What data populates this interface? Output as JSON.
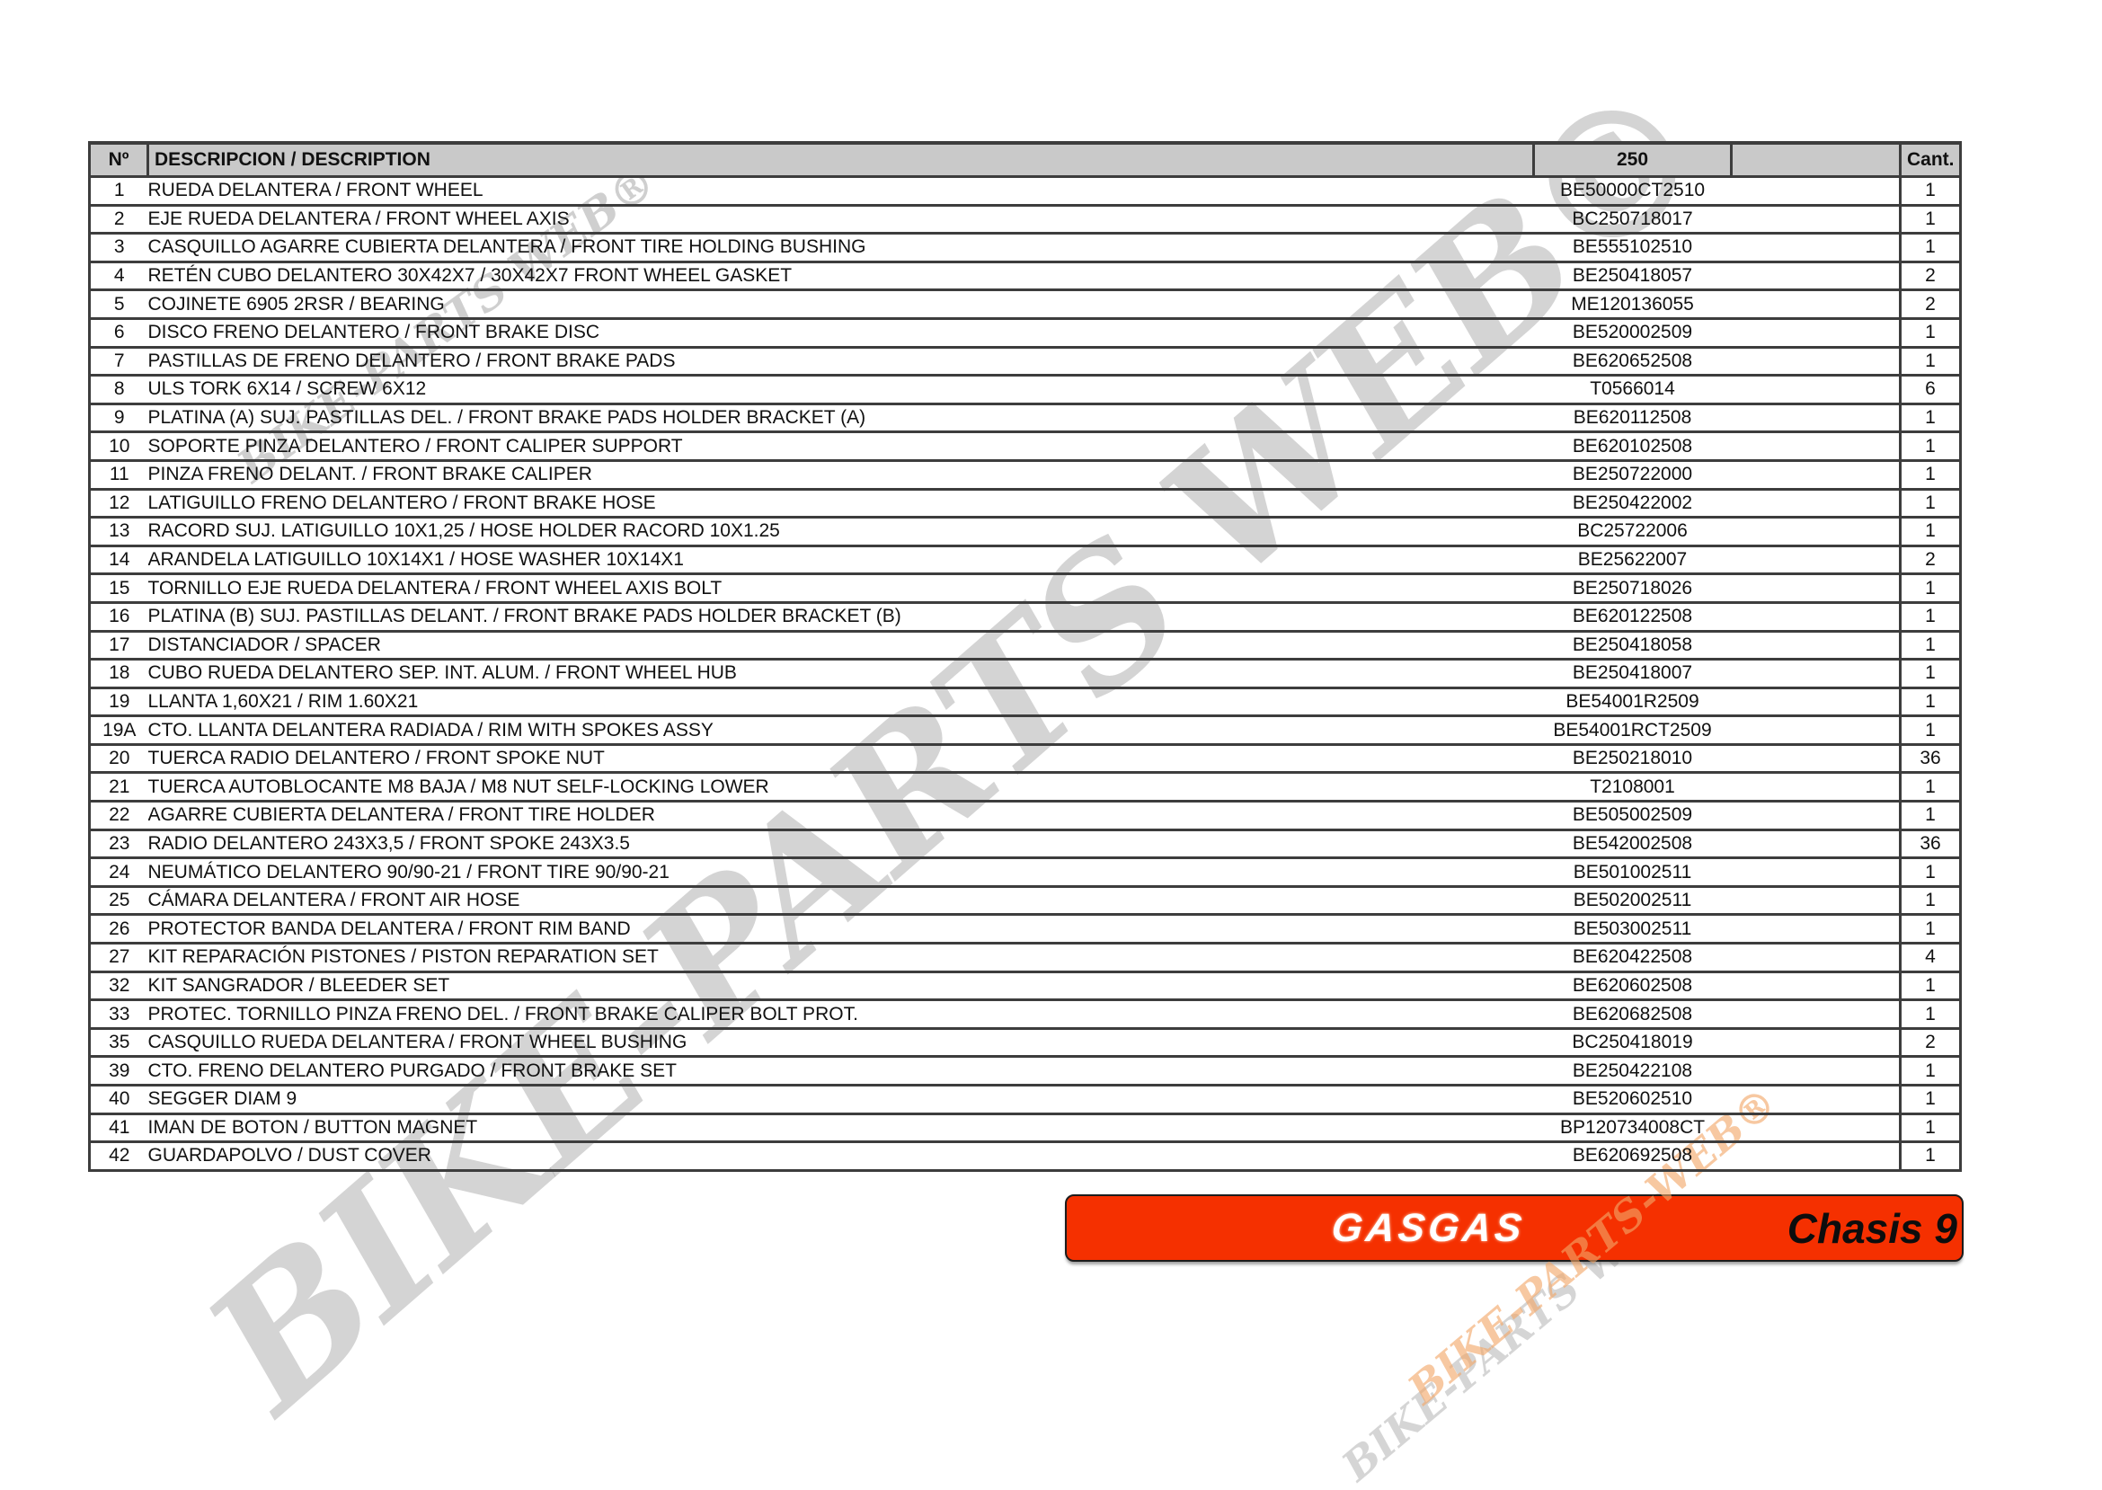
{
  "page": {
    "background": "#ffffff"
  },
  "table": {
    "headers": {
      "num": "Nº",
      "description": "DESCRIPCION / DESCRIPTION",
      "model": "250",
      "spare": "",
      "qty": "Cant."
    },
    "style": {
      "header_bg": "#c9c9c9",
      "line_color": "#3d3d3d"
    },
    "rows": [
      {
        "num": "1",
        "description": "RUEDA DELANTERA / FRONT WHEEL",
        "part": "BE50000CT2510",
        "qty": "1"
      },
      {
        "num": "2",
        "description": "EJE RUEDA DELANTERA / FRONT WHEEL AXIS",
        "part": "BC250718017",
        "qty": "1"
      },
      {
        "num": "3",
        "description": "CASQUILLO AGARRE CUBIERTA DELANTERA / FRONT TIRE HOLDING BUSHING",
        "part": "BE555102510",
        "qty": "1"
      },
      {
        "num": "4",
        "description": "RETÉN CUBO DELANTERO 30X42X7 / 30X42X7 FRONT WHEEL GASKET",
        "part": "BE250418057",
        "qty": "2"
      },
      {
        "num": "5",
        "description": "COJINETE 6905 2RSR / BEARING",
        "part": "ME120136055",
        "qty": "2"
      },
      {
        "num": "6",
        "description": "DISCO FRENO DELANTERO / FRONT BRAKE DISC",
        "part": "BE520002509",
        "qty": "1"
      },
      {
        "num": "7",
        "description": "PASTILLAS DE FRENO DELANTERO / FRONT BRAKE PADS",
        "part": "BE620652508",
        "qty": "1"
      },
      {
        "num": "8",
        "description": "ULS TORK 6X14 / SCREW 6X12",
        "part": "T0566014",
        "qty": "6"
      },
      {
        "num": "9",
        "description": "PLATINA (A) SUJ. PASTILLAS DEL. / FRONT BRAKE PADS HOLDER BRACKET (A)",
        "part": "BE620112508",
        "qty": "1"
      },
      {
        "num": "10",
        "description": "SOPORTE PINZA DELANTERO / FRONT CALIPER SUPPORT",
        "part": "BE620102508",
        "qty": "1"
      },
      {
        "num": "11",
        "description": "PINZA FRENO DELANT. / FRONT BRAKE CALIPER",
        "part": "BE250722000",
        "qty": "1"
      },
      {
        "num": "12",
        "description": "LATIGUILLO FRENO DELANTERO / FRONT BRAKE HOSE",
        "part": "BE250422002",
        "qty": "1"
      },
      {
        "num": "13",
        "description": "RACORD SUJ. LATIGUILLO 10X1,25 / HOSE HOLDER RACORD 10X1.25",
        "part": "BC25722006",
        "qty": "1"
      },
      {
        "num": "14",
        "description": "ARANDELA LATIGUILLO 10X14X1 / HOSE WASHER 10X14X1",
        "part": "BE25622007",
        "qty": "2"
      },
      {
        "num": "15",
        "description": "TORNILLO EJE RUEDA DELANTERA / FRONT WHEEL AXIS BOLT",
        "part": "BE250718026",
        "qty": "1"
      },
      {
        "num": "16",
        "description": "PLATINA (B) SUJ. PASTILLAS DELANT. / FRONT BRAKE PADS HOLDER BRACKET (B)",
        "part": "BE620122508",
        "qty": "1"
      },
      {
        "num": "17",
        "description": "DISTANCIADOR / SPACER",
        "part": "BE250418058",
        "qty": "1"
      },
      {
        "num": "18",
        "description": "CUBO RUEDA DELANTERO SEP. INT. ALUM. / FRONT WHEEL HUB",
        "part": "BE250418007",
        "qty": "1"
      },
      {
        "num": "19",
        "description": "LLANTA 1,60X21 / RIM 1.60X21",
        "part": "BE54001R2509",
        "qty": "1"
      },
      {
        "num": "19A",
        "description": "CTO. LLANTA DELANTERA RADIADA / RIM WITH SPOKES ASSY",
        "part": "BE54001RCT2509",
        "qty": "1"
      },
      {
        "num": "20",
        "description": "TUERCA RADIO DELANTERO / FRONT SPOKE NUT",
        "part": "BE250218010",
        "qty": "36"
      },
      {
        "num": "21",
        "description": "TUERCA AUTOBLOCANTE M8 BAJA / M8 NUT SELF-LOCKING LOWER",
        "part": "T2108001",
        "qty": "1"
      },
      {
        "num": "22",
        "description": "AGARRE CUBIERTA DELANTERA / FRONT TIRE HOLDER",
        "part": "BE505002509",
        "qty": "1"
      },
      {
        "num": "23",
        "description": "RADIO DELANTERO 243X3,5 / FRONT SPOKE 243X3.5",
        "part": "BE542002508",
        "qty": "36"
      },
      {
        "num": "24",
        "description": "NEUMÁTICO DELANTERO 90/90-21 / FRONT TIRE 90/90-21",
        "part": "BE501002511",
        "qty": "1"
      },
      {
        "num": "25",
        "description": "CÁMARA DELANTERA / FRONT AIR HOSE",
        "part": "BE502002511",
        "qty": "1"
      },
      {
        "num": "26",
        "description": "PROTECTOR BANDA DELANTERA / FRONT RIM BAND",
        "part": "BE503002511",
        "qty": "1"
      },
      {
        "num": "27",
        "description": "KIT REPARACIÓN PISTONES / PISTON REPARATION SET",
        "part": "BE620422508",
        "qty": "4"
      },
      {
        "num": "32",
        "description": "KIT SANGRADOR / BLEEDER SET",
        "part": "BE620602508",
        "qty": "1"
      },
      {
        "num": "33",
        "description": "PROTEC. TORNILLO PINZA FRENO DEL. / FRONT BRAKE CALIPER BOLT PROT.",
        "part": "BE620682508",
        "qty": "1"
      },
      {
        "num": "35",
        "description": "CASQUILLO RUEDA DELANTERA / FRONT WHEEL BUSHING",
        "part": "BC250418019",
        "qty": "2"
      },
      {
        "num": "39",
        "description": "CTO. FRENO DELANTERO PURGADO / FRONT BRAKE SET",
        "part": "BE250422108",
        "qty": "1"
      },
      {
        "num": "40",
        "description": "SEGGER DIAM 9",
        "part": "BE520602510",
        "qty": "1"
      },
      {
        "num": "41",
        "description": "IMAN DE BOTON / BUTTON MAGNET",
        "part": "BP120734008CT",
        "qty": "1"
      },
      {
        "num": "42",
        "description": "GUARDAPOLVO / DUST COVER",
        "part": "BE620692508",
        "qty": "1"
      }
    ]
  },
  "banner": {
    "brand": "GASGAS",
    "label": "Chasis 9",
    "background": "#f53000"
  },
  "watermarks": {
    "top_left": "BIKE-PARTS WEB®",
    "center": "BIKE-PARTS WEB©",
    "bottom_right_orange": "BIKE-PARTS-WEB®",
    "bottom_right_gray": "BIKE-PARTS WEB",
    "gray_color": "#8a8a8a",
    "orange_color": "#f2a668"
  }
}
